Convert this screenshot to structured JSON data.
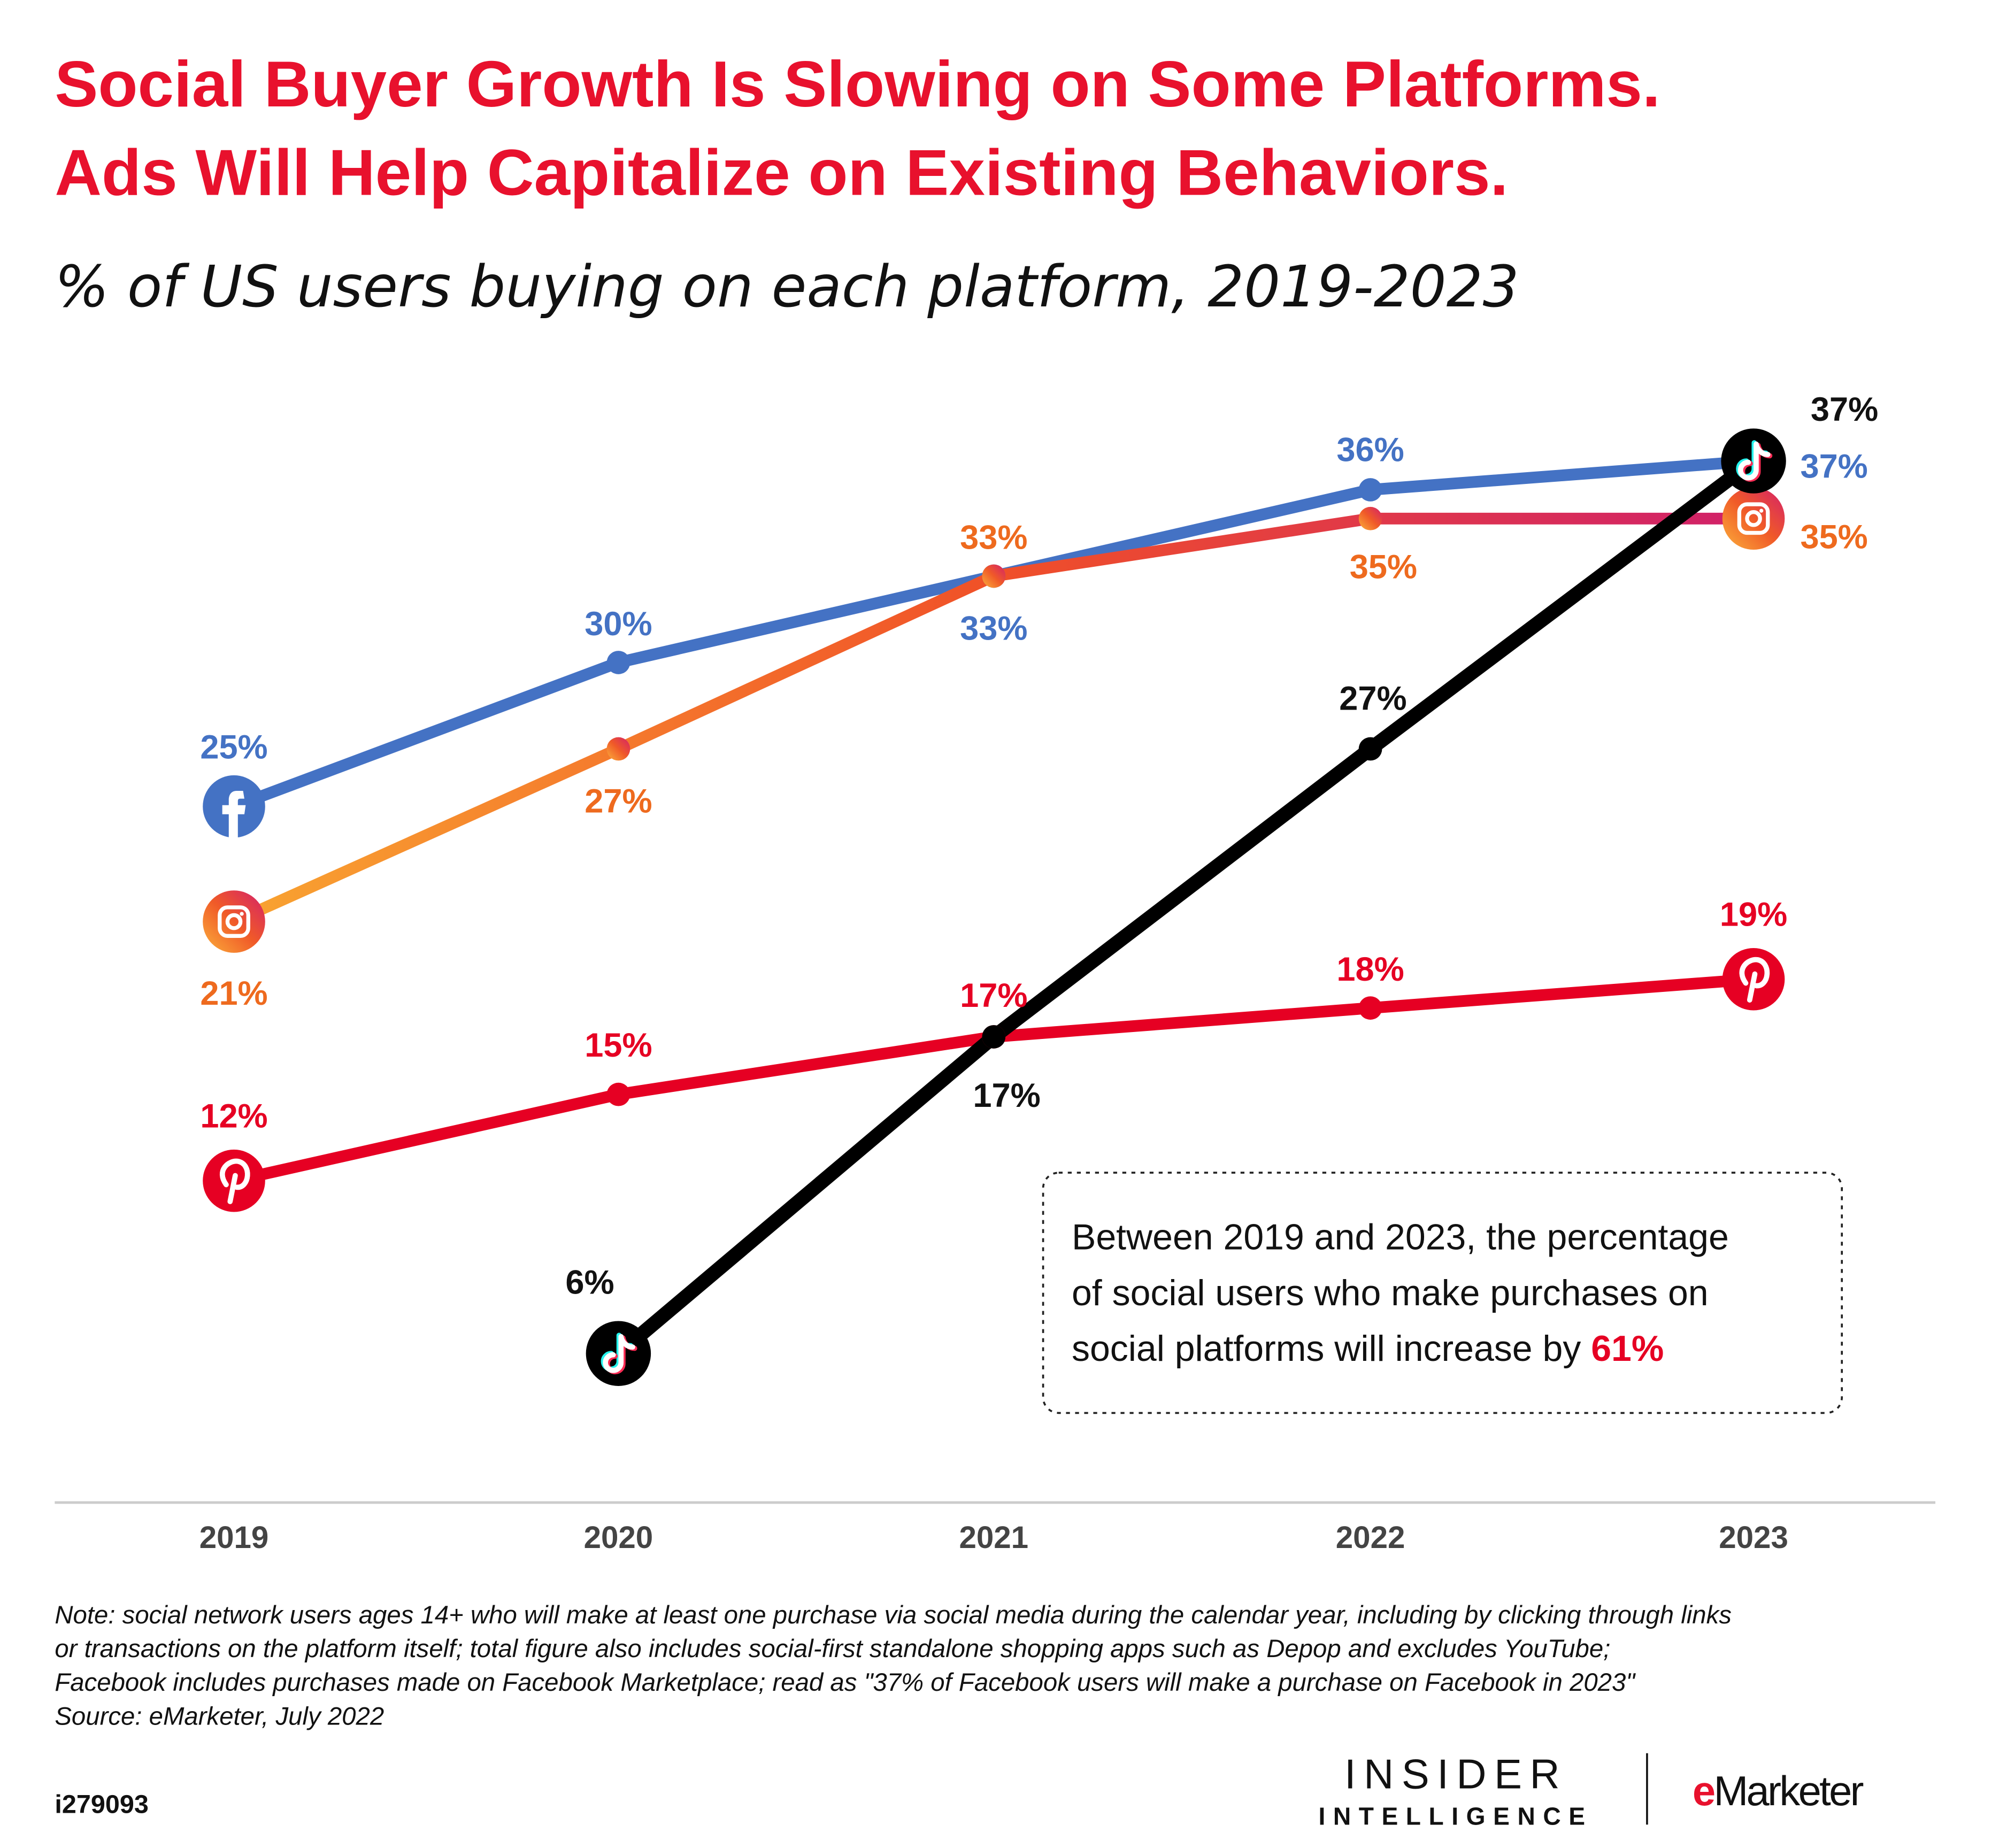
{
  "chart_data": {
    "type": "line",
    "title": "Social Buyer Growth Is Slowing on Some Platforms. Ads Will Help Capitalize on Existing Behaviors.",
    "title_lines": [
      "Social Buyer Growth Is Slowing on Some Platforms.",
      "Ads Will Help Capitalize on Existing Behaviors."
    ],
    "subtitle": "% of US users buying on each platform, 2019-2023",
    "categories": [
      "2019",
      "2020",
      "2021",
      "2022",
      "2023"
    ],
    "unit": "%",
    "grid": false,
    "series": [
      {
        "platform": "facebook",
        "icon": "facebook-icon",
        "color": "#4472c4",
        "labelColor": "#4472c4",
        "values": [
          25,
          30,
          33,
          36,
          37
        ]
      },
      {
        "platform": "instagram",
        "icon": "instagram-icon",
        "color": "#f06a2a",
        "labelColor": "#ee6a1e",
        "values": [
          21,
          27,
          33,
          35,
          35
        ]
      },
      {
        "platform": "pinterest",
        "icon": "pinterest-icon",
        "color": "#e60023",
        "labelColor": "#e60023",
        "values": [
          12,
          15,
          17,
          18,
          19
        ]
      },
      {
        "platform": "tiktok",
        "icon": "tiktok-icon",
        "color": "#000000",
        "labelColor": "#111111",
        "values": [
          null,
          6,
          17,
          27,
          37
        ]
      }
    ]
  },
  "callout": {
    "lines": [
      "Between 2019 and 2023, the percentage",
      "of social users who make purchases on",
      "social platforms will increase by "
    ],
    "highlight": "61%",
    "highlight_color": "#e60023"
  },
  "notes": [
    "Note: social network users ages 14+ who will make at least one purchase via social media during the calendar year, including by clicking through links",
    "or transactions on the platform itself; total figure also includes social-first standalone shopping apps such as Depop and excludes YouTube;",
    "Facebook includes purchases made on Facebook Marketplace; read as \"37% of Facebook users will make a purchase on Facebook in 2023\"",
    "Source: eMarketer, July 2022"
  ],
  "chart_id": "i279093",
  "logos": {
    "insider_line1": "INSIDER",
    "insider_line2": "INTELLIGENCE",
    "emarketer_e": "e",
    "emarketer_rest": "Marketer"
  }
}
